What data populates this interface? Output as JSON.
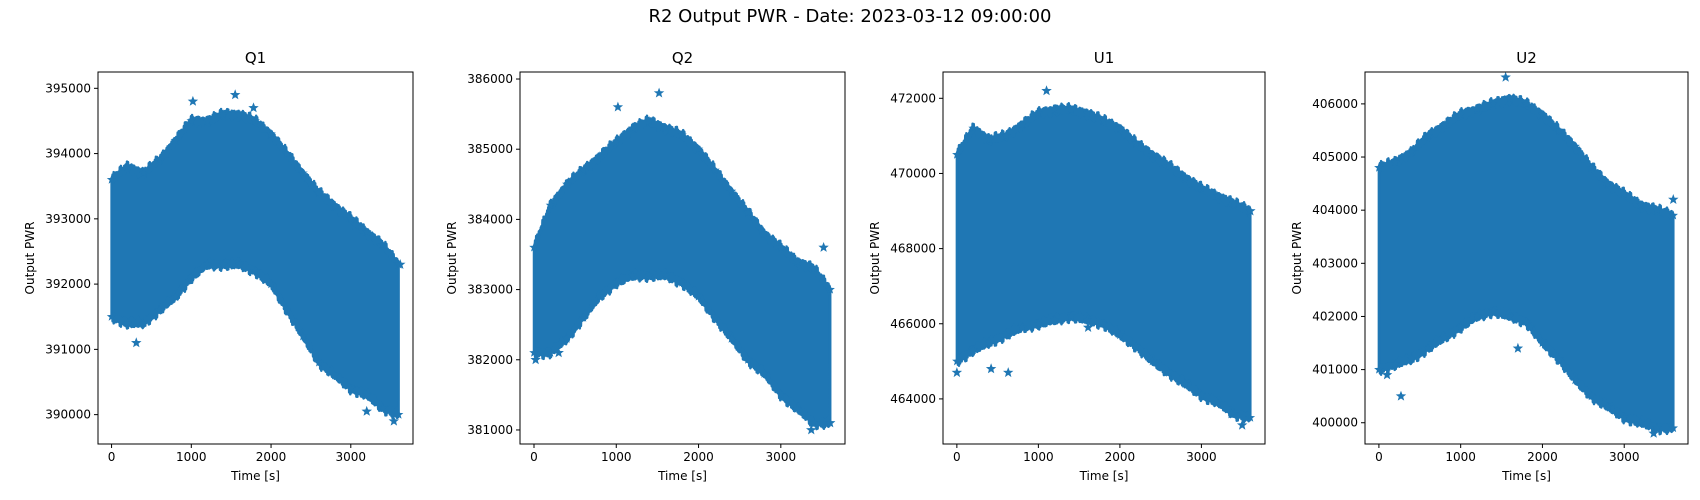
{
  "figure": {
    "suptitle": "R2 Output PWR - Date: 2023-03-12 09:00:00",
    "marker_color": "#1f77b4",
    "marker": "star"
  },
  "chart_data": [
    {
      "type": "scatter",
      "title": "Q1",
      "xlabel": "Time [s]",
      "ylabel": "Output PWR",
      "xlim": [
        -170,
        3780
      ],
      "ylim": [
        389550,
        395250
      ],
      "xticks": [
        0,
        1000,
        2000,
        3000
      ],
      "yticks": [
        390000,
        391000,
        392000,
        393000,
        394000,
        395000
      ],
      "ytick_labels": [
        "390000",
        "391000",
        "392000",
        "393000",
        "394000",
        "395000"
      ],
      "series": [
        {
          "x": [
            0,
            200,
            400,
            600,
            800,
            1000,
            1200,
            1400,
            1600,
            1800,
            2000,
            2200,
            2400,
            2600,
            2800,
            3000,
            3200,
            3400,
            3600
          ],
          "upper": [
            393600,
            393800,
            393700,
            393900,
            394200,
            394500,
            394500,
            394600,
            394600,
            394500,
            394300,
            394000,
            393700,
            393400,
            393200,
            393000,
            392800,
            392600,
            392300
          ],
          "lower": [
            391500,
            391400,
            391400,
            391600,
            391800,
            392100,
            392300,
            392300,
            392300,
            392200,
            392000,
            391600,
            391200,
            390800,
            390600,
            390400,
            390300,
            390100,
            390000
          ]
        }
      ],
      "outliers": [
        [
          310,
          391100
        ],
        [
          1020,
          394800
        ],
        [
          1550,
          394900
        ],
        [
          1780,
          394700
        ],
        [
          3060,
          392900
        ],
        [
          3200,
          390050
        ],
        [
          3540,
          389900
        ],
        [
          3620,
          392300
        ]
      ]
    },
    {
      "type": "scatter",
      "title": "Q2",
      "xlabel": "Time [s]",
      "ylabel": "Output PWR",
      "xlim": [
        -170,
        3780
      ],
      "ylim": [
        380800,
        386100
      ],
      "xticks": [
        0,
        1000,
        2000,
        3000
      ],
      "yticks": [
        381000,
        382000,
        383000,
        384000,
        385000,
        386000
      ],
      "ytick_labels": [
        "381000",
        "382000",
        "383000",
        "384000",
        "385000",
        "386000"
      ],
      "series": [
        {
          "x": [
            0,
            200,
            400,
            600,
            800,
            1000,
            1200,
            1400,
            1600,
            1800,
            2000,
            2200,
            2400,
            2600,
            2800,
            3000,
            3200,
            3400,
            3600
          ],
          "upper": [
            383600,
            384200,
            384500,
            384700,
            384900,
            385100,
            385300,
            385400,
            385300,
            385200,
            385000,
            384700,
            384400,
            384100,
            383800,
            383600,
            383400,
            383300,
            383000
          ],
          "lower": [
            382100,
            382100,
            382300,
            382600,
            382900,
            383100,
            383200,
            383200,
            383200,
            383100,
            382900,
            382600,
            382300,
            382000,
            381800,
            381500,
            381300,
            381100,
            381100
          ]
        }
      ],
      "outliers": [
        [
          20,
          382000
        ],
        [
          300,
          382100
        ],
        [
          1020,
          385600
        ],
        [
          1520,
          385800
        ],
        [
          3370,
          381000
        ],
        [
          3520,
          383600
        ],
        [
          3600,
          381100
        ]
      ]
    },
    {
      "type": "scatter",
      "title": "U1",
      "xlabel": "Time [s]",
      "ylabel": "Output PWR",
      "xlim": [
        -170,
        3780
      ],
      "ylim": [
        462800,
        472700
      ],
      "xticks": [
        0,
        1000,
        2000,
        3000
      ],
      "yticks": [
        464000,
        466000,
        468000,
        470000,
        472000
      ],
      "ytick_labels": [
        "464000",
        "466000",
        "468000",
        "470000",
        "472000"
      ],
      "series": [
        {
          "x": [
            0,
            200,
            400,
            600,
            800,
            1000,
            1200,
            1400,
            1600,
            1800,
            2000,
            2200,
            2400,
            2600,
            2800,
            3000,
            3200,
            3400,
            3600
          ],
          "upper": [
            470500,
            471200,
            470900,
            471000,
            471300,
            471600,
            471700,
            471700,
            471600,
            471400,
            471200,
            470800,
            470500,
            470200,
            469900,
            469600,
            469400,
            469200,
            469000
          ],
          "lower": [
            465000,
            465300,
            465500,
            465700,
            465900,
            466000,
            466100,
            466200,
            466100,
            466000,
            465700,
            465400,
            465000,
            464700,
            464400,
            464100,
            463900,
            463600,
            463500
          ]
        }
      ],
      "outliers": [
        [
          0,
          464700
        ],
        [
          420,
          464800
        ],
        [
          630,
          464700
        ],
        [
          1100,
          472200
        ],
        [
          1610,
          465900
        ],
        [
          3370,
          463600
        ],
        [
          3500,
          463300
        ],
        [
          3600,
          469000
        ]
      ]
    },
    {
      "type": "scatter",
      "title": "U2",
      "xlabel": "Time [s]",
      "ylabel": "Output PWR",
      "xlim": [
        -170,
        3780
      ],
      "ylim": [
        399600,
        406600
      ],
      "xticks": [
        0,
        1000,
        2000,
        3000
      ],
      "yticks": [
        400000,
        401000,
        402000,
        403000,
        404000,
        405000,
        406000
      ],
      "ytick_labels": [
        "400000",
        "401000",
        "402000",
        "403000",
        "404000",
        "405000",
        "406000"
      ],
      "series": [
        {
          "x": [
            0,
            200,
            400,
            600,
            800,
            1000,
            1200,
            1400,
            1600,
            1800,
            2000,
            2200,
            2400,
            2600,
            2800,
            3000,
            3200,
            3400,
            3600
          ],
          "upper": [
            404800,
            404900,
            405100,
            405400,
            405600,
            405800,
            405900,
            406000,
            406100,
            406000,
            405800,
            405500,
            405200,
            404800,
            404500,
            404300,
            404100,
            404000,
            403900
          ],
          "lower": [
            401000,
            401100,
            401200,
            401400,
            401600,
            401800,
            402000,
            402100,
            402000,
            401900,
            401500,
            401200,
            400800,
            400500,
            400300,
            400100,
            400000,
            399900,
            399900
          ]
        }
      ],
      "outliers": [
        [
          100,
          400900
        ],
        [
          270,
          400500
        ],
        [
          1550,
          406500
        ],
        [
          1850,
          401800
        ],
        [
          1700,
          401400
        ],
        [
          3360,
          399800
        ],
        [
          3600,
          404200
        ]
      ]
    }
  ]
}
